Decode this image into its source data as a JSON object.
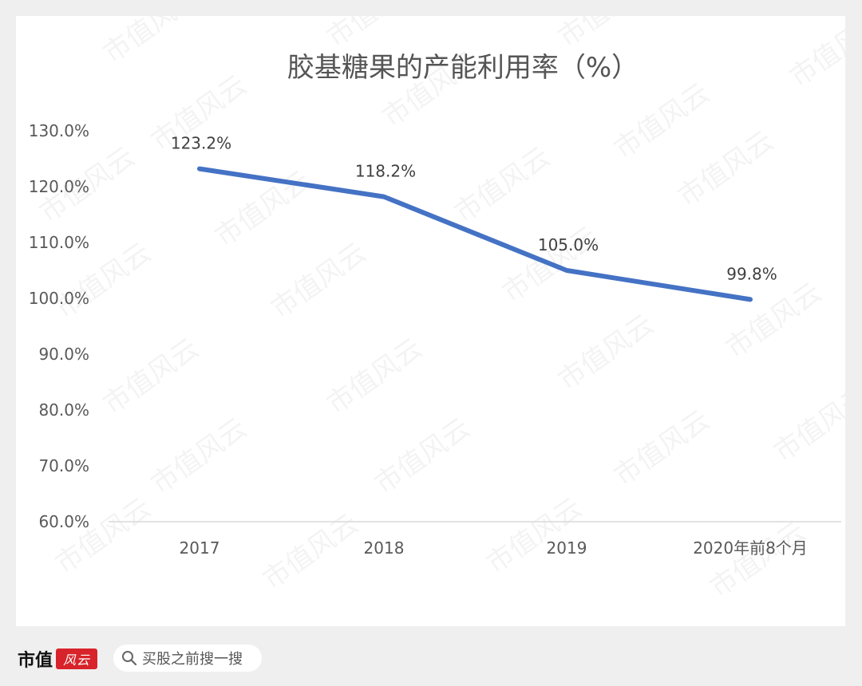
{
  "chart_data": {
    "type": "line",
    "title": "胶基糖果的产能利用率（%）",
    "categories": [
      "2017",
      "2018",
      "2019",
      "2020年前8个月"
    ],
    "series": [
      {
        "values": [
          123.2,
          118.2,
          105.0,
          99.8
        ],
        "color": "#4472c4"
      }
    ],
    "data_labels": [
      "123.2%",
      "118.2%",
      "105.0%",
      "99.8%"
    ],
    "yticks": [
      "60.0%",
      "70.0%",
      "80.0%",
      "90.0%",
      "100.0%",
      "110.0%",
      "120.0%",
      "130.0%"
    ],
    "ylim": [
      60,
      130
    ],
    "grid": false,
    "legend": "none"
  },
  "watermark": "市值风云",
  "brand": {
    "name": "市值",
    "mark": "风云"
  },
  "search": {
    "icon": "search-icon",
    "placeholder": "买股之前搜一搜"
  }
}
